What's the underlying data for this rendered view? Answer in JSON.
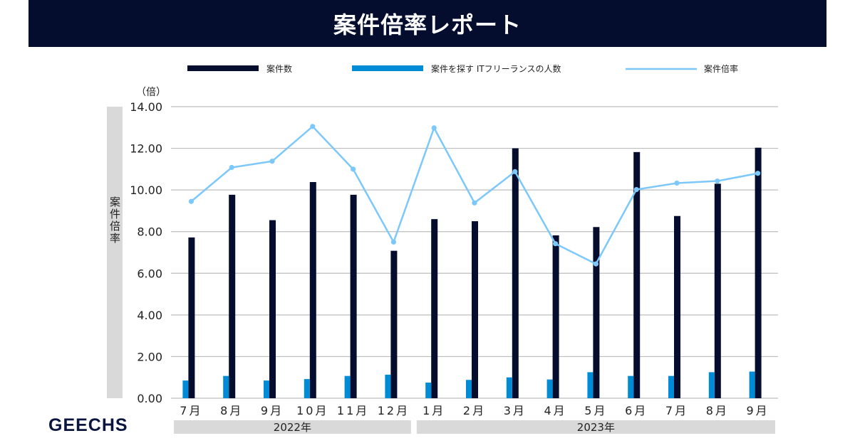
{
  "header": {
    "title": "案件倍率レポート"
  },
  "logo": "GEECHS",
  "colors": {
    "header_bg": "#050d2e",
    "jobs": "#050d2e",
    "people": "#008bd6",
    "ratio": "#7cc8fb",
    "grid": "#bdbdbd",
    "year_band": "#d9d9d9"
  },
  "chart_data": {
    "type": "bar",
    "title": "案件倍率レポート",
    "ylabel": "案件倍率",
    "yunit": "（倍）",
    "ylim": [
      0,
      14
    ],
    "yticks": [
      "0.00",
      "2.00",
      "4.00",
      "6.00",
      "8.00",
      "10.00",
      "12.00",
      "14.00"
    ],
    "grid": true,
    "legend_position": "top",
    "categories": [
      "7月",
      "8月",
      "9月",
      "10月",
      "11月",
      "12月",
      "1月",
      "2月",
      "3月",
      "4月",
      "5月",
      "6月",
      "7月",
      "8月",
      "9月"
    ],
    "year_groups": [
      {
        "label": "2022年",
        "count": 6
      },
      {
        "label": "2023年",
        "count": 9
      }
    ],
    "series": [
      {
        "name": "案件数",
        "kind": "bar",
        "values": [
          7.72,
          9.77,
          8.55,
          10.38,
          9.77,
          7.08,
          8.6,
          8.5,
          12.0,
          7.82,
          8.22,
          11.82,
          8.75,
          10.3,
          12.03
        ]
      },
      {
        "name": "案件を探す ITフリーランスの人数",
        "kind": "bar",
        "values": [
          0.85,
          1.07,
          0.85,
          0.92,
          1.07,
          1.13,
          0.75,
          0.88,
          1.0,
          0.9,
          1.25,
          1.07,
          1.07,
          1.25,
          1.28
        ]
      },
      {
        "name": "案件倍率",
        "kind": "line",
        "values": [
          9.45,
          11.08,
          11.38,
          13.05,
          11.0,
          7.5,
          12.98,
          9.38,
          10.88,
          7.42,
          6.45,
          10.02,
          10.33,
          10.43,
          10.8
        ]
      }
    ]
  }
}
